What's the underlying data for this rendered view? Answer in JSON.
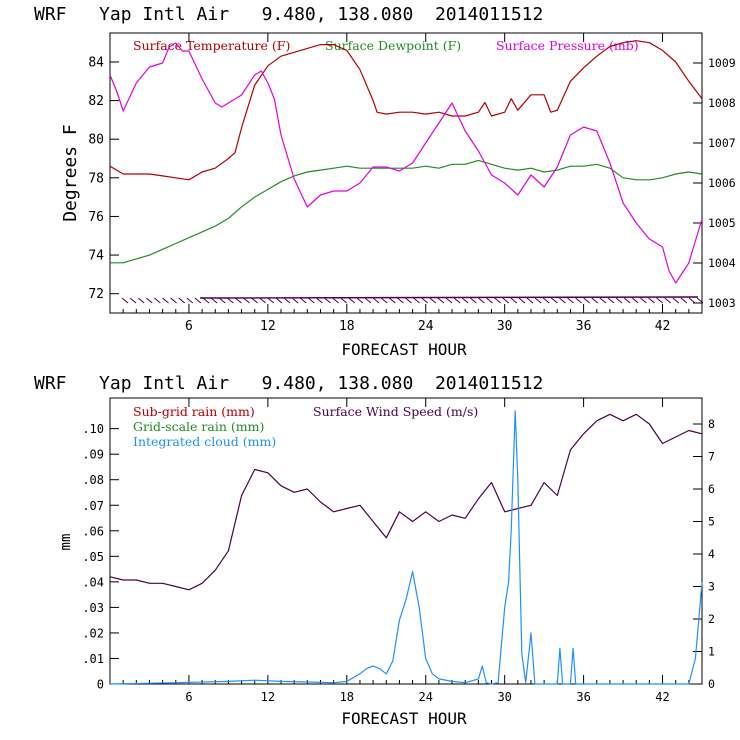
{
  "chart_data": [
    {
      "type": "line",
      "title": "WRF   Yap Intl Air   9.480, 138.080  2014011512",
      "xlabel": "FORECAST HOUR",
      "ylabel": "Degrees F",
      "xlim": [
        0,
        45
      ],
      "xticks": [
        6,
        12,
        18,
        24,
        30,
        36,
        42
      ],
      "ylim": [
        71,
        85.5
      ],
      "yticks": [
        72,
        74,
        76,
        78,
        80,
        82,
        84
      ],
      "y2lim": [
        1002.75,
        1009.75
      ],
      "y2ticks": [
        1003,
        1004,
        1005,
        1006,
        1007,
        1008,
        1009
      ],
      "legend": [
        {
          "label": "Surface Temperature (F)",
          "color": "#b30000"
        },
        {
          "label": "Surface Dewpoint (F)",
          "color": "#228b22"
        },
        {
          "label": "Surface Pressure (mb)",
          "color": "#e000e0"
        }
      ],
      "series": [
        {
          "name": "Surface Temperature (F)",
          "axis": "left",
          "color": "#b30000",
          "x": [
            0,
            1,
            2,
            3,
            4,
            5,
            6,
            7,
            8,
            9,
            9.5,
            10,
            11,
            12,
            13,
            14,
            15,
            16,
            17,
            18,
            19,
            20,
            20.3,
            21,
            22,
            23,
            24,
            25,
            26,
            27,
            28,
            28.5,
            29,
            30,
            30.5,
            31,
            32,
            33,
            33.5,
            34,
            35,
            36,
            37,
            38,
            39,
            40,
            41,
            42,
            43,
            44,
            45
          ],
          "values": [
            78.6,
            78.2,
            78.2,
            78.2,
            78.1,
            78.0,
            77.9,
            78.3,
            78.5,
            79.0,
            79.3,
            80.6,
            82.8,
            83.8,
            84.3,
            84.5,
            84.7,
            84.9,
            84.9,
            84.6,
            83.6,
            82.0,
            81.4,
            81.3,
            81.4,
            81.4,
            81.3,
            81.4,
            81.2,
            81.2,
            81.4,
            81.9,
            81.2,
            81.4,
            82.1,
            81.5,
            82.3,
            82.3,
            81.4,
            81.5,
            83.0,
            83.7,
            84.3,
            84.8,
            85.0,
            85.1,
            85.0,
            84.6,
            84.0,
            83.0,
            82.1
          ]
        },
        {
          "name": "Surface Dewpoint (F)",
          "axis": "left",
          "color": "#228b22",
          "x": [
            0,
            1,
            2,
            3,
            4,
            5,
            6,
            7,
            8,
            9,
            10,
            11,
            12,
            13,
            14,
            15,
            16,
            17,
            18,
            19,
            20,
            21,
            22,
            23,
            24,
            25,
            26,
            27,
            28,
            29,
            30,
            31,
            32,
            33,
            34,
            35,
            36,
            37,
            38,
            39,
            40,
            41,
            42,
            43,
            44,
            45
          ],
          "values": [
            73.6,
            73.6,
            73.8,
            74.0,
            74.3,
            74.6,
            74.9,
            75.2,
            75.5,
            75.9,
            76.5,
            77.0,
            77.4,
            77.8,
            78.1,
            78.3,
            78.4,
            78.5,
            78.6,
            78.5,
            78.5,
            78.5,
            78.5,
            78.5,
            78.6,
            78.5,
            78.7,
            78.7,
            78.9,
            78.7,
            78.5,
            78.4,
            78.5,
            78.3,
            78.4,
            78.6,
            78.6,
            78.7,
            78.5,
            78.0,
            77.9,
            77.9,
            78.0,
            78.2,
            78.3,
            78.2
          ]
        },
        {
          "name": "Surface Pressure (mb)",
          "axis": "right",
          "color": "#e000e0",
          "x": [
            0,
            0.5,
            1,
            2,
            3,
            4,
            4.5,
            5,
            5.5,
            6,
            7,
            8,
            8.5,
            9,
            10,
            11,
            11.5,
            12,
            12.5,
            13,
            14,
            15,
            16,
            17,
            18,
            19,
            20,
            21,
            22,
            23,
            24,
            25,
            26,
            27,
            28,
            29,
            30,
            31,
            32,
            33,
            34,
            35,
            36,
            37,
            38,
            39,
            40,
            41,
            42,
            42.5,
            43,
            44,
            45
          ],
          "values": [
            1008.7,
            1008.3,
            1007.8,
            1008.5,
            1008.9,
            1009.0,
            1009.4,
            1009.5,
            1009.3,
            1009.3,
            1008.6,
            1008.0,
            1007.9,
            1008.0,
            1008.2,
            1008.7,
            1008.8,
            1008.5,
            1008.1,
            1007.2,
            1006.1,
            1005.4,
            1005.7,
            1005.8,
            1005.8,
            1006.0,
            1006.4,
            1006.4,
            1006.3,
            1006.5,
            1007.0,
            1007.5,
            1008.0,
            1007.3,
            1006.8,
            1006.2,
            1006.0,
            1005.7,
            1006.2,
            1005.9,
            1006.4,
            1007.2,
            1007.4,
            1007.3,
            1006.5,
            1005.5,
            1005.0,
            1004.6,
            1004.4,
            1003.8,
            1003.5,
            1004.0,
            1005.1
          ]
        }
      ]
    },
    {
      "type": "line",
      "title": "WRF   Yap Intl Air   9.480, 138.080  2014011512",
      "xlabel": "FORECAST HOUR",
      "ylabel": "mm",
      "xlim": [
        0,
        45
      ],
      "xticks": [
        6,
        12,
        18,
        24,
        30,
        36,
        42
      ],
      "ylim": [
        0,
        0.112
      ],
      "yticks": [
        0,
        0.01,
        0.02,
        0.03,
        0.04,
        0.05,
        0.06,
        0.07,
        0.08,
        0.09,
        0.1
      ],
      "ytick_labels": [
        "0",
        ".01",
        ".02",
        ".03",
        ".04",
        ".05",
        ".06",
        ".07",
        ".08",
        ".09",
        ".10"
      ],
      "y2lim": [
        0,
        8.8
      ],
      "y2ticks": [
        0,
        1,
        2,
        3,
        4,
        5,
        6,
        7,
        8
      ],
      "legend": [
        {
          "label": "Sub-grid rain (mm)",
          "color": "#b30000"
        },
        {
          "label": "Grid-scale rain (mm)",
          "color": "#228b22"
        },
        {
          "label": "Integrated cloud (mm)",
          "color": "#1e90ff"
        },
        {
          "label": "Surface Wind Speed (m/s)",
          "color": "#4b004b"
        }
      ],
      "series": [
        {
          "name": "Surface Wind Speed (m/s)",
          "axis": "right",
          "color": "#4b004b",
          "x": [
            0,
            1,
            2,
            3,
            4,
            5,
            6,
            7,
            8,
            9,
            10,
            11,
            12,
            13,
            14,
            15,
            16,
            17,
            18,
            19,
            20,
            21,
            22,
            23,
            24,
            25,
            26,
            27,
            28,
            29,
            30,
            31,
            32,
            33,
            34,
            35,
            36,
            37,
            38,
            39,
            40,
            41,
            42,
            43,
            44,
            45
          ],
          "values": [
            3.3,
            3.2,
            3.2,
            3.1,
            3.1,
            3.0,
            2.9,
            3.1,
            3.5,
            4.1,
            5.8,
            6.6,
            6.5,
            6.1,
            5.9,
            6.0,
            5.6,
            5.3,
            5.4,
            5.5,
            5.0,
            4.5,
            5.3,
            5.0,
            5.3,
            5.0,
            5.2,
            5.1,
            5.7,
            6.2,
            5.3,
            5.4,
            5.5,
            6.2,
            5.8,
            7.2,
            7.7,
            8.1,
            8.3,
            8.1,
            8.3,
            8.0,
            7.4,
            7.6,
            7.8,
            7.7
          ]
        },
        {
          "name": "Integrated cloud (mm)",
          "axis": "left",
          "color": "#1e90ff",
          "x": [
            0,
            5,
            9,
            11,
            13,
            15,
            17,
            18,
            19,
            19.5,
            20,
            20.5,
            21,
            21.5,
            22,
            22.5,
            23,
            23.5,
            24,
            24.5,
            25,
            26,
            27,
            28,
            28.3,
            28.6,
            29,
            29.5,
            30,
            30.3,
            30.5,
            30.8,
            31,
            31.3,
            31.6,
            32,
            32.3,
            32.6,
            33,
            34,
            34.2,
            34.4,
            35,
            35.2,
            35.4,
            36,
            38,
            40,
            42,
            44,
            44.5,
            45
          ],
          "values": [
            0,
            0.0005,
            0.001,
            0.0015,
            0.001,
            0.0008,
            0.0005,
            0.001,
            0.004,
            0.006,
            0.007,
            0.006,
            0.004,
            0.009,
            0.025,
            0.033,
            0.044,
            0.03,
            0.01,
            0.004,
            0.002,
            0.001,
            0.0005,
            0.002,
            0.007,
            0.0005,
            0,
            0.0005,
            0.03,
            0.04,
            0.06,
            0.107,
            0.08,
            0.012,
            0.0005,
            0.02,
            0,
            0,
            0,
            0,
            0.014,
            0,
            0,
            0.014,
            0,
            0,
            0,
            0,
            0,
            0,
            0.01,
            0.04
          ]
        }
      ]
    }
  ]
}
